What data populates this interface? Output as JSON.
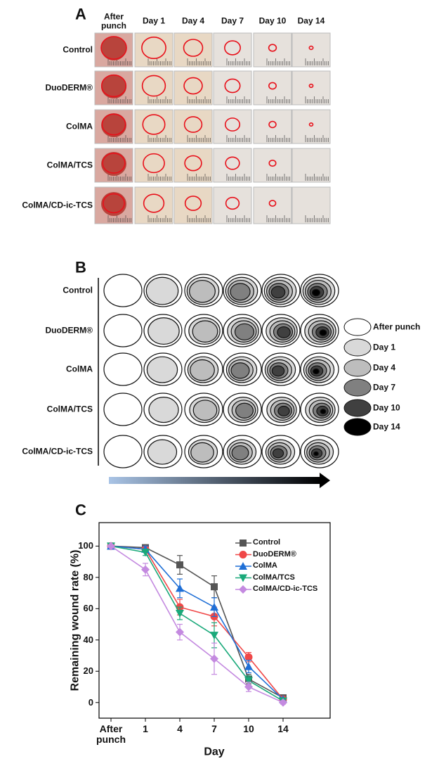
{
  "panel_a": {
    "label": "A",
    "columns": [
      "After punch",
      "Day 1",
      "Day 4",
      "Day 7",
      "Day 10",
      "Day 14"
    ],
    "rows": [
      "Control",
      "DuoDERM®",
      "ColMA",
      "ColMA/TCS",
      "ColMA/CD-ic-TCS"
    ]
  },
  "panel_b": {
    "label": "B",
    "rows": [
      "Control",
      "DuoDERM®",
      "ColMA",
      "ColMA/TCS",
      "ColMA/CD-ic-TCS"
    ],
    "legend": [
      {
        "name": "After punch",
        "color": "#ffffff"
      },
      {
        "name": "Day 1",
        "color": "#d9d9d9"
      },
      {
        "name": "Day 4",
        "color": "#bdbdbd"
      },
      {
        "name": "Day 7",
        "color": "#808080"
      },
      {
        "name": "Day 10",
        "color": "#404040"
      },
      {
        "name": "Day 14",
        "color": "#000000"
      }
    ]
  },
  "chart_data": {
    "type": "line",
    "label": "C",
    "xlabel": "Day",
    "ylabel": "Remaining wound rate (%)",
    "categories": [
      "After punch",
      "1",
      "4",
      "7",
      "10",
      "14"
    ],
    "ylim": [
      -10,
      115
    ],
    "yticks": [
      0,
      20,
      40,
      60,
      80,
      100
    ],
    "legend": "upper right",
    "series": [
      {
        "name": "Control",
        "color": "#555555",
        "marker": "square",
        "values": [
          100,
          99,
          88,
          74,
          15,
          3
        ],
        "errors": [
          0,
          1,
          6,
          7,
          3,
          1
        ]
      },
      {
        "name": "DuoDERM®",
        "color": "#f04848",
        "marker": "circle",
        "values": [
          100,
          98,
          61,
          55,
          29,
          2
        ],
        "errors": [
          0,
          1,
          5,
          6,
          3,
          1
        ]
      },
      {
        "name": "ColMA",
        "color": "#1f6fd6",
        "marker": "triangle-up",
        "values": [
          100,
          98,
          73,
          61,
          23,
          2
        ],
        "errors": [
          0,
          2,
          6,
          6,
          4,
          1
        ]
      },
      {
        "name": "ColMA/TCS",
        "color": "#1aa97a",
        "marker": "triangle-down",
        "values": [
          100,
          96,
          57,
          43,
          14,
          1
        ],
        "errors": [
          0,
          2,
          4,
          8,
          3,
          1
        ]
      },
      {
        "name": "ColMA/CD-ic-TCS",
        "color": "#c48ae0",
        "marker": "diamond",
        "values": [
          100,
          85,
          45,
          28,
          10,
          0
        ],
        "errors": [
          0,
          4,
          5,
          10,
          3,
          1
        ]
      }
    ]
  }
}
